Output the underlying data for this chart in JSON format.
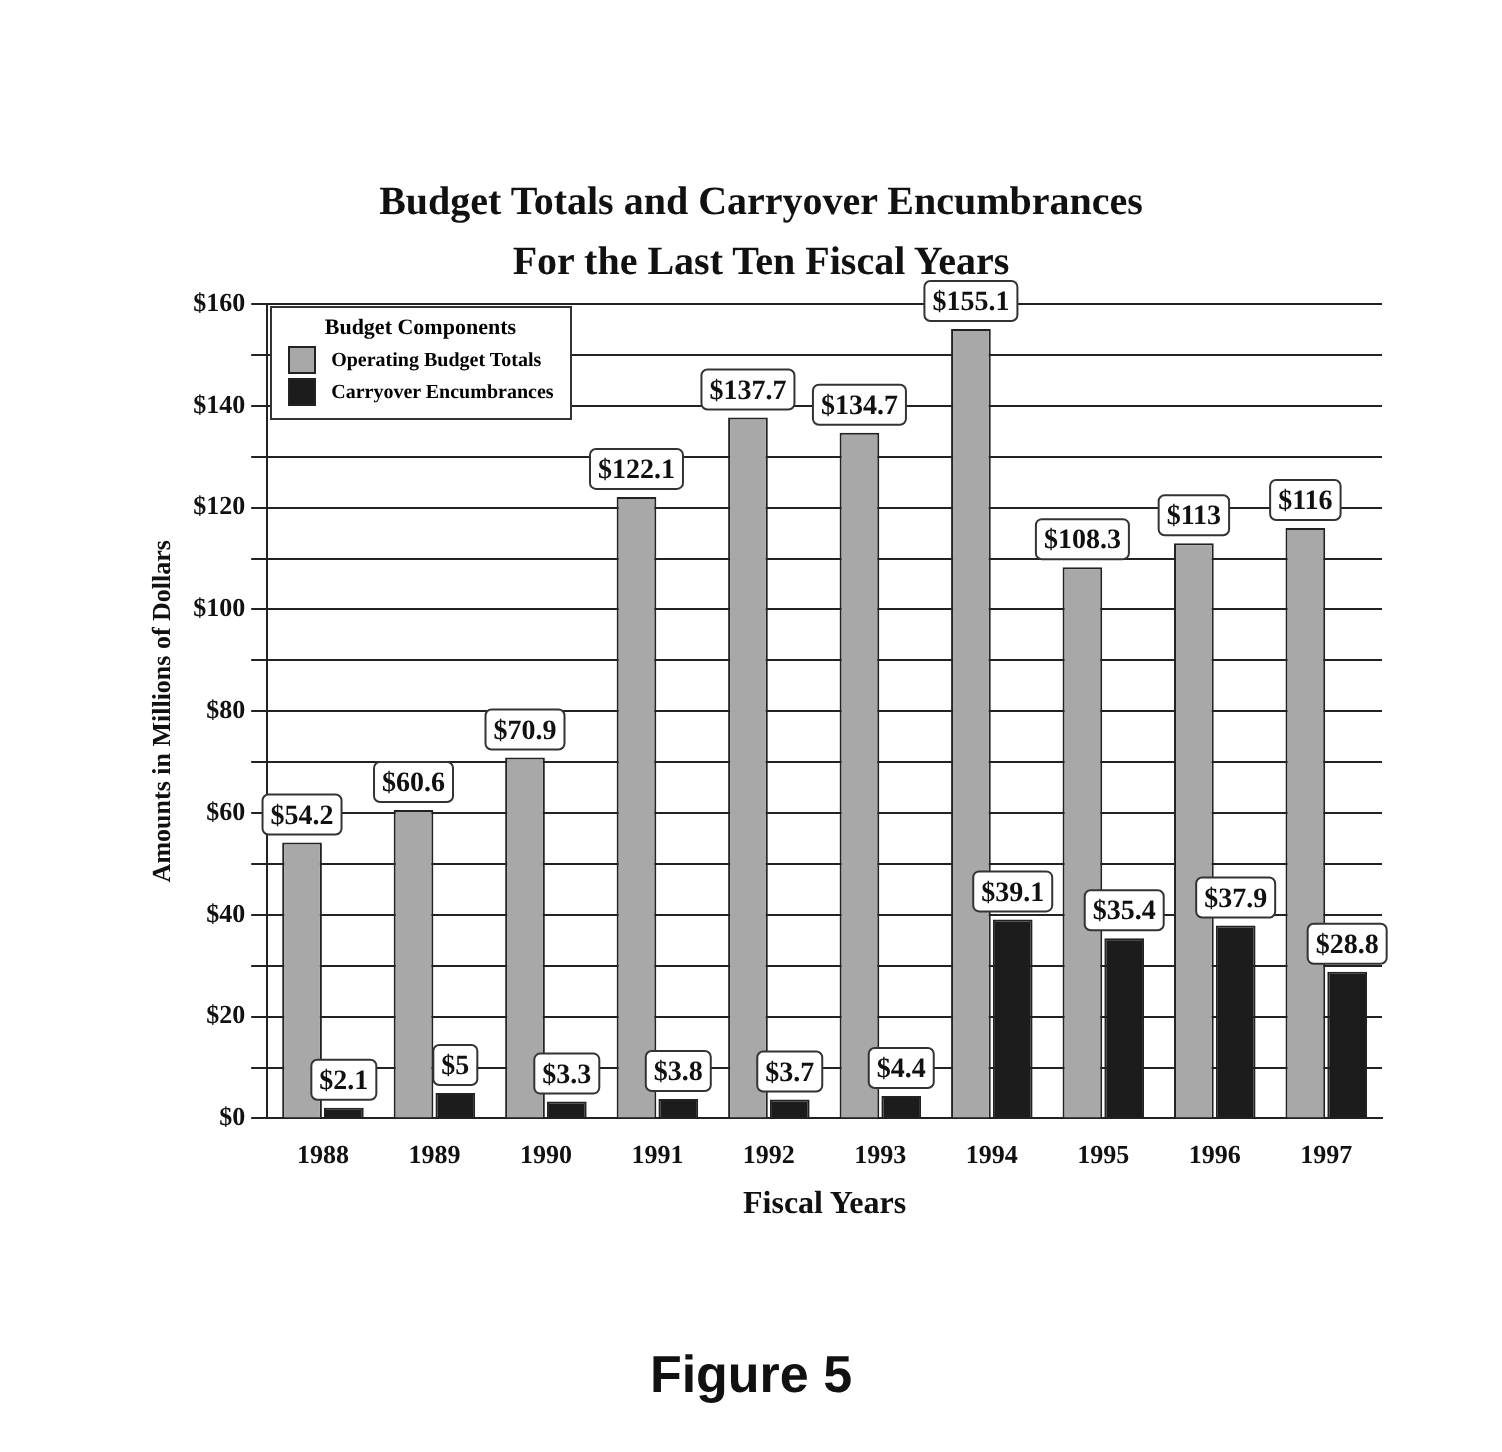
{
  "chart_data": {
    "type": "bar",
    "title": "Budget Totals and Carryover Encumbrances",
    "subtitle": "For the Last Ten Fiscal Years",
    "xlabel": "Fiscal Years",
    "ylabel": "Amounts in Millions of Dollars",
    "categories": [
      "1988",
      "1989",
      "1990",
      "1991",
      "1992",
      "1993",
      "1994",
      "1995",
      "1996",
      "1997"
    ],
    "series": [
      {
        "name": "Operating Budget Totals",
        "color": "#a8a8a8",
        "values": [
          54.2,
          60.6,
          70.9,
          122.1,
          137.7,
          134.7,
          155.1,
          108.3,
          113,
          116
        ],
        "value_labels": [
          "$54.2",
          "$60.6",
          "$70.9",
          "$122.1",
          "$137.7",
          "$134.7",
          "$155.1",
          "$108.3",
          "$113",
          "$116"
        ]
      },
      {
        "name": "Carryover Encumbrances",
        "color": "#1c1c1c",
        "values": [
          2.1,
          5,
          3.3,
          3.8,
          3.7,
          4.4,
          39.1,
          35.4,
          37.9,
          28.8
        ],
        "value_labels": [
          "$2.1",
          "$5",
          "$3.3",
          "$3.8",
          "$3.7",
          "$4.4",
          "$39.1",
          "$35.4",
          "$37.9",
          "$28.8"
        ]
      }
    ],
    "ylim": [
      0,
      160
    ],
    "yticks": [
      {
        "value": 0,
        "label": "$0"
      },
      {
        "value": 10,
        "label": null
      },
      {
        "value": 20,
        "label": "$20"
      },
      {
        "value": 30,
        "label": null
      },
      {
        "value": 40,
        "label": "$40"
      },
      {
        "value": 50,
        "label": null
      },
      {
        "value": 60,
        "label": "$60"
      },
      {
        "value": 70,
        "label": null
      },
      {
        "value": 80,
        "label": "$80"
      },
      {
        "value": 90,
        "label": null
      },
      {
        "value": 100,
        "label": "$100"
      },
      {
        "value": 110,
        "label": null
      },
      {
        "value": 120,
        "label": "$120"
      },
      {
        "value": 130,
        "label": null
      },
      {
        "value": 140,
        "label": "$140"
      },
      {
        "value": 150,
        "label": null
      },
      {
        "value": 160,
        "label": "$160"
      }
    ],
    "grid": "y",
    "legend": "top left",
    "legend_title": "Budget Components",
    "annotations": [
      "Figure 5"
    ]
  }
}
